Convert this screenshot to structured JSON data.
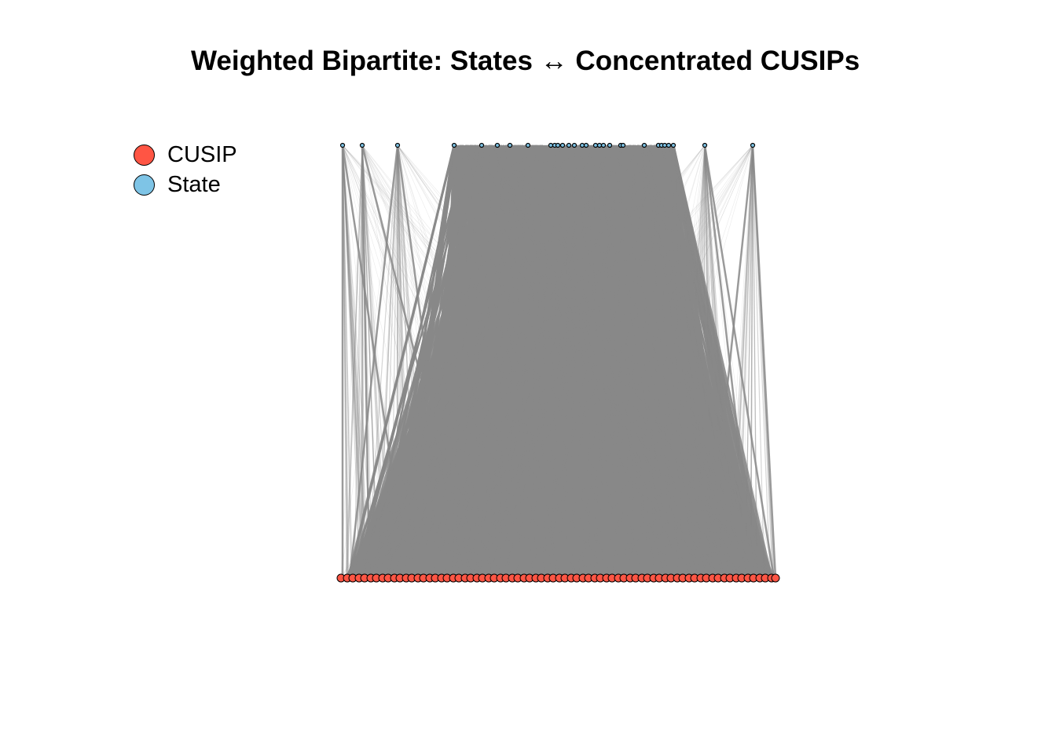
{
  "title": "Weighted Bipartite: States ↔ Concentrated CUSIPs",
  "legend": [
    {
      "label": "CUSIP",
      "color": "#FF5544"
    },
    {
      "label": "State",
      "color": "#7EC4E6"
    }
  ],
  "colors": {
    "cusip_node": "#FF5544",
    "state_node": "#7EC4E6",
    "edge": "#888888",
    "node_border": "#000000"
  },
  "layout_type": "bipartite: State nodes on top row, CUSIP nodes on bottom row"
}
